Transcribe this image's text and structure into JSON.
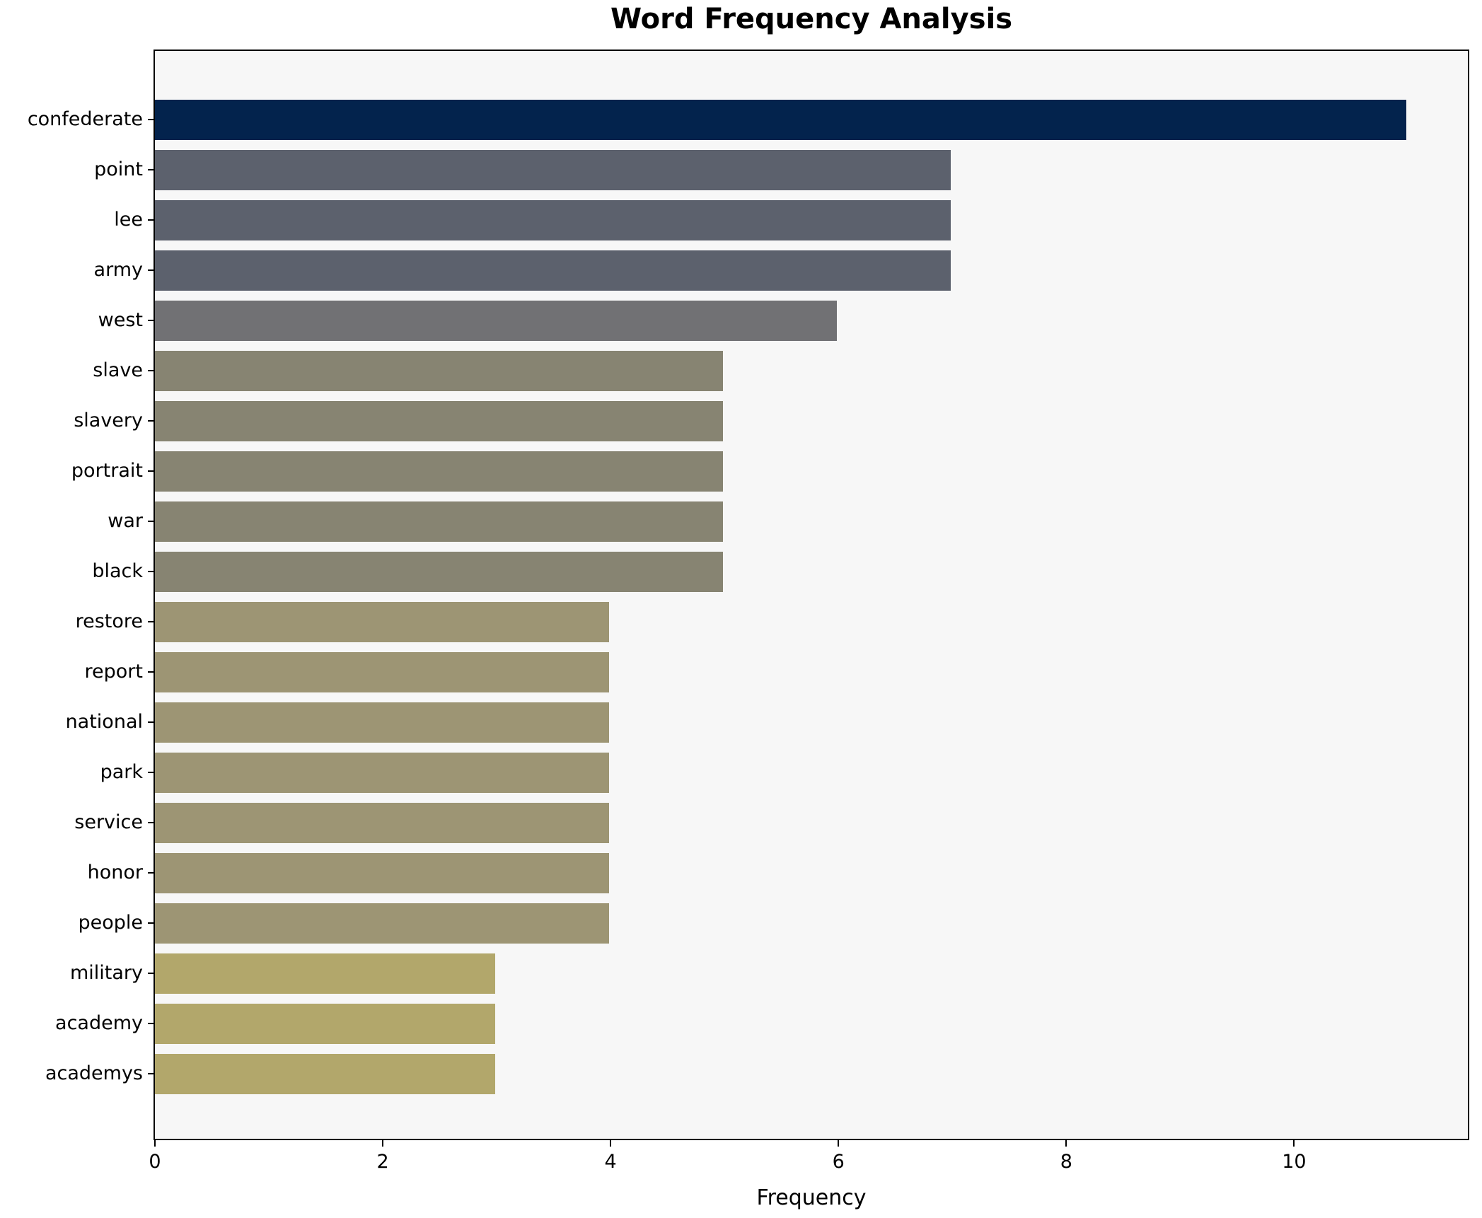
{
  "chart_data": {
    "type": "bar",
    "orientation": "horizontal",
    "title": "Word Frequency Analysis",
    "xlabel": "Frequency",
    "ylabel": "",
    "categories": [
      "confederate",
      "point",
      "lee",
      "army",
      "west",
      "slave",
      "slavery",
      "portrait",
      "war",
      "black",
      "restore",
      "report",
      "national",
      "park",
      "service",
      "honor",
      "people",
      "military",
      "academy",
      "academys"
    ],
    "values": [
      11,
      7,
      7,
      7,
      6,
      5,
      5,
      5,
      5,
      5,
      4,
      4,
      4,
      4,
      4,
      4,
      4,
      3,
      3,
      3
    ],
    "bar_colors": [
      "#03234d",
      "#5c616d",
      "#5c616d",
      "#5c616d",
      "#717174",
      "#878472",
      "#878472",
      "#878472",
      "#878472",
      "#878472",
      "#9d9574",
      "#9d9574",
      "#9d9574",
      "#9d9574",
      "#9d9574",
      "#9d9574",
      "#9d9574",
      "#b2a76b",
      "#b2a76b",
      "#b2a76b"
    ],
    "xlim": [
      0,
      11.55
    ],
    "xticks": [
      0,
      2,
      4,
      6,
      8,
      10
    ],
    "grid": false,
    "legend": null,
    "plot_background": "#f7f7f7",
    "figure_background": "#ffffff",
    "spine_color": "#000000"
  }
}
